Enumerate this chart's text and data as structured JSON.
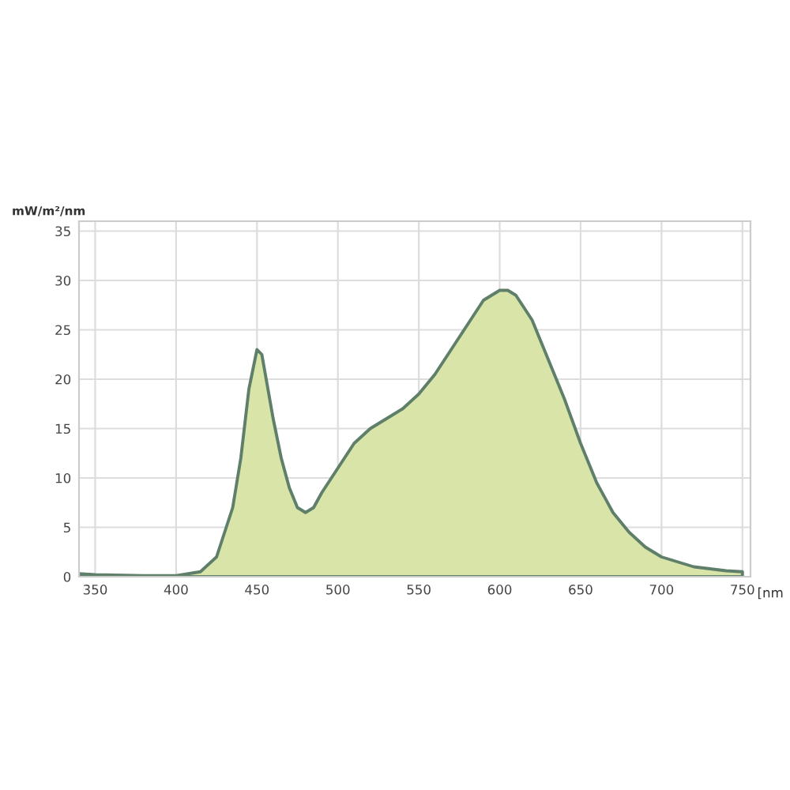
{
  "chart_data": {
    "type": "area",
    "xlabel": "[nm",
    "ylabel": "mW/m²/nm",
    "x": [
      340,
      350,
      380,
      400,
      415,
      425,
      435,
      440,
      445,
      450,
      453,
      460,
      465,
      470,
      475,
      480,
      485,
      490,
      500,
      510,
      520,
      530,
      540,
      550,
      560,
      570,
      580,
      590,
      600,
      605,
      610,
      620,
      630,
      640,
      650,
      660,
      670,
      680,
      690,
      700,
      720,
      740,
      750
    ],
    "series": [
      {
        "color": "#d8e4a8",
        "values": [
          0.3,
          0.2,
          0.1,
          0.1,
          0.5,
          2,
          7,
          12,
          19,
          23,
          22.5,
          16,
          12,
          9,
          7,
          6.5,
          7,
          8.5,
          11,
          13.5,
          15,
          16,
          17,
          18.5,
          20.5,
          23,
          25.5,
          28,
          29,
          29,
          28.5,
          26,
          22,
          18,
          13.5,
          9.5,
          6.5,
          4.5,
          3,
          2,
          1,
          0.6,
          0.5
        ]
      }
    ],
    "xlim": [
      340,
      755
    ],
    "xticks": [
      350,
      400,
      450,
      500,
      550,
      600,
      650,
      700,
      750
    ],
    "ylim": [
      0,
      36
    ],
    "yticks": [
      0,
      5,
      10,
      15,
      20,
      25,
      30,
      35
    ],
    "grid": true
  }
}
